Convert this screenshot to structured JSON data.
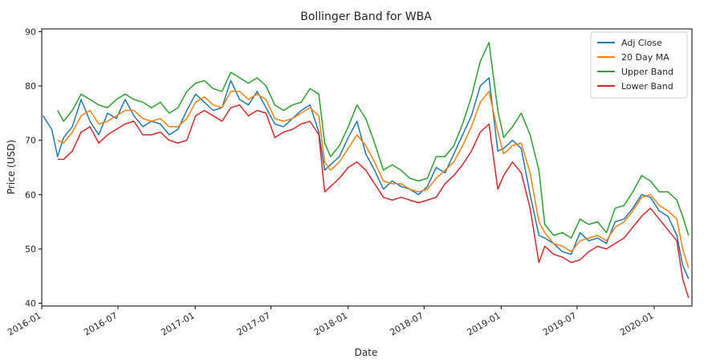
{
  "chart_data": {
    "type": "line",
    "title": "Bollinger Band for WBA",
    "xlabel": "Date",
    "ylabel": "Price (USD)",
    "xlim": [
      "2016-01-01",
      "2020-03-31"
    ],
    "ylim": [
      39.5,
      90.5
    ],
    "x_ticks": [
      "2016-01",
      "2016-07",
      "2017-01",
      "2017-07",
      "2018-01",
      "2018-07",
      "2019-01",
      "2019-07",
      "2020-01"
    ],
    "y_ticks": [
      40,
      50,
      60,
      70,
      80,
      90
    ],
    "grid": false,
    "legend_position": "top-right",
    "dates": [
      "2016-01-04",
      "2016-01-25",
      "2016-02-08",
      "2016-02-22",
      "2016-03-14",
      "2016-04-04",
      "2016-04-25",
      "2016-05-16",
      "2016-06-06",
      "2016-06-27",
      "2016-07-18",
      "2016-08-08",
      "2016-08-29",
      "2016-09-19",
      "2016-10-10",
      "2016-10-31",
      "2016-11-21",
      "2016-12-12",
      "2017-01-02",
      "2017-01-23",
      "2017-02-13",
      "2017-03-06",
      "2017-03-27",
      "2017-04-17",
      "2017-05-08",
      "2017-05-29",
      "2017-06-19",
      "2017-07-10",
      "2017-07-31",
      "2017-08-21",
      "2017-09-11",
      "2017-10-02",
      "2017-10-23",
      "2017-11-06",
      "2017-11-20",
      "2017-12-11",
      "2018-01-01",
      "2018-01-22",
      "2018-02-12",
      "2018-03-05",
      "2018-03-26",
      "2018-04-16",
      "2018-05-07",
      "2018-05-28",
      "2018-06-18",
      "2018-07-09",
      "2018-07-30",
      "2018-08-20",
      "2018-09-10",
      "2018-10-01",
      "2018-10-22",
      "2018-11-12",
      "2018-12-03",
      "2018-12-24",
      "2019-01-07",
      "2019-01-28",
      "2019-02-18",
      "2019-03-11",
      "2019-04-01",
      "2019-04-15",
      "2019-05-06",
      "2019-05-27",
      "2019-06-17",
      "2019-07-08",
      "2019-07-29",
      "2019-08-19",
      "2019-09-09",
      "2019-09-30",
      "2019-10-21",
      "2019-11-11",
      "2019-12-02",
      "2019-12-23",
      "2020-01-13",
      "2020-02-03",
      "2020-02-24",
      "2020-03-09",
      "2020-03-23"
    ],
    "series": [
      {
        "name": "Adj Close",
        "color": "#1f77b4",
        "values": [
          74.5,
          72.0,
          67.0,
          70.5,
          72.5,
          77.5,
          73.5,
          71.0,
          75.0,
          74.0,
          77.5,
          74.5,
          72.5,
          73.5,
          73.0,
          71.0,
          72.0,
          75.5,
          78.5,
          77.0,
          75.5,
          76.0,
          81.0,
          77.5,
          76.5,
          79.0,
          76.0,
          73.0,
          72.5,
          74.0,
          75.5,
          76.5,
          71.5,
          64.5,
          65.5,
          67.0,
          70.5,
          73.5,
          67.5,
          64.5,
          61.0,
          62.5,
          61.5,
          61.0,
          60.0,
          61.5,
          65.0,
          64.0,
          67.5,
          71.0,
          74.5,
          80.0,
          81.5,
          68.0,
          68.5,
          70.0,
          68.5,
          60.0,
          52.5,
          52.0,
          51.0,
          49.5,
          49.0,
          53.0,
          51.5,
          52.0,
          51.0,
          55.0,
          55.5,
          57.5,
          60.0,
          59.5,
          57.0,
          56.0,
          52.5,
          47.0,
          44.5
        ]
      },
      {
        "name": "20 Day MA",
        "color": "#ff7f0e",
        "values": [
          null,
          null,
          70.0,
          69.5,
          71.5,
          74.5,
          75.5,
          73.0,
          73.5,
          74.5,
          75.5,
          75.5,
          74.0,
          73.5,
          74.0,
          72.5,
          72.5,
          74.0,
          77.0,
          78.0,
          76.5,
          76.0,
          79.0,
          79.0,
          77.5,
          78.5,
          77.5,
          74.0,
          73.5,
          74.0,
          75.0,
          76.0,
          74.5,
          66.0,
          64.5,
          66.0,
          68.5,
          71.0,
          69.0,
          66.0,
          62.5,
          62.0,
          62.0,
          61.0,
          60.5,
          61.0,
          63.0,
          64.5,
          66.0,
          69.0,
          72.5,
          77.0,
          79.0,
          71.5,
          67.5,
          69.0,
          69.5,
          64.0,
          55.0,
          53.0,
          51.0,
          50.5,
          49.5,
          51.5,
          52.0,
          52.5,
          51.5,
          54.0,
          55.0,
          57.0,
          59.5,
          60.0,
          58.0,
          57.0,
          55.5,
          50.0,
          46.5
        ]
      },
      {
        "name": "Upper Band",
        "color": "#2ca02c",
        "values": [
          null,
          null,
          75.5,
          73.5,
          75.5,
          78.5,
          77.5,
          76.5,
          76.0,
          77.5,
          78.5,
          77.5,
          77.0,
          76.0,
          77.0,
          75.0,
          76.0,
          79.0,
          80.5,
          81.0,
          79.5,
          79.0,
          82.5,
          81.5,
          80.5,
          81.5,
          80.0,
          76.5,
          75.5,
          76.5,
          77.0,
          79.5,
          78.5,
          69.5,
          67.0,
          69.0,
          72.5,
          76.5,
          74.0,
          69.5,
          64.5,
          65.5,
          64.5,
          63.0,
          62.5,
          63.0,
          67.0,
          67.0,
          69.0,
          73.0,
          78.0,
          84.5,
          88.0,
          75.5,
          70.5,
          72.5,
          75.0,
          71.0,
          64.5,
          54.5,
          52.5,
          53.0,
          52.0,
          55.5,
          54.5,
          55.0,
          53.0,
          57.5,
          58.0,
          60.5,
          63.5,
          62.5,
          60.5,
          60.5,
          59.0,
          56.0,
          52.5
        ]
      },
      {
        "name": "Lower Band",
        "color": "#d62728",
        "values": [
          null,
          null,
          66.5,
          66.5,
          68.0,
          71.5,
          72.5,
          69.5,
          71.0,
          72.0,
          73.0,
          73.5,
          71.0,
          71.0,
          71.5,
          70.0,
          69.5,
          70.0,
          74.5,
          75.5,
          74.5,
          73.5,
          76.0,
          76.5,
          74.5,
          75.5,
          75.0,
          70.5,
          71.5,
          72.0,
          73.0,
          73.5,
          71.0,
          60.5,
          61.5,
          63.0,
          65.0,
          66.0,
          64.5,
          62.0,
          59.5,
          59.0,
          59.5,
          59.0,
          58.5,
          59.0,
          59.5,
          62.0,
          63.5,
          65.5,
          68.0,
          71.5,
          73.0,
          61.0,
          63.5,
          66.0,
          64.0,
          57.5,
          47.5,
          50.5,
          49.0,
          48.5,
          47.5,
          48.0,
          49.5,
          50.5,
          50.0,
          51.0,
          52.0,
          54.0,
          56.0,
          57.5,
          55.5,
          53.5,
          51.5,
          44.5,
          41.0
        ]
      }
    ]
  }
}
